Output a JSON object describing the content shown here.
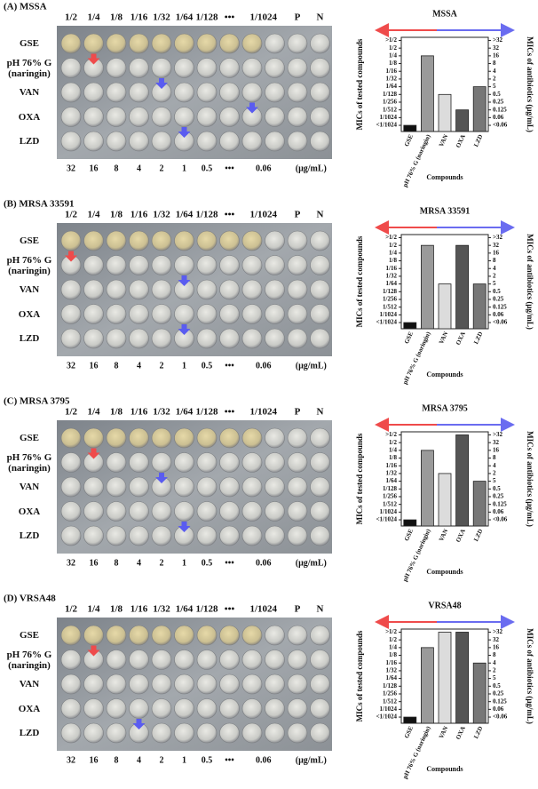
{
  "plates": [
    {
      "label": "(A) MSSA",
      "column_headers": [
        "1/2",
        "1/4",
        "1/8",
        "1/16",
        "1/32",
        "1/64",
        "1/128",
        "•••",
        "1/1024",
        "P",
        "N"
      ],
      "row_labels": [
        "GSE",
        "pH 76% G (naringin)",
        "VAN",
        "OXA",
        "LZD"
      ],
      "bottom_labels": [
        "32",
        "16",
        "8",
        "4",
        "2",
        "1",
        "0.5",
        "•••",
        "0.06",
        "(μg/mL)"
      ]
    },
    {
      "label": "(B) MRSA 33591",
      "column_headers": [
        "1/2",
        "1/4",
        "1/8",
        "1/16",
        "1/32",
        "1/64",
        "1/128",
        "•••",
        "1/1024",
        "P",
        "N"
      ],
      "row_labels": [
        "GSE",
        "pH 76% G (naringin)",
        "VAN",
        "OXA",
        "LZD"
      ],
      "bottom_labels": [
        "32",
        "16",
        "8",
        "4",
        "2",
        "1",
        "0.5",
        "•••",
        "0.06",
        "(μg/mL)"
      ]
    },
    {
      "label": "(C) MRSA 3795",
      "column_headers": [
        "1/2",
        "1/4",
        "1/8",
        "1/16",
        "1/32",
        "1/64",
        "1/128",
        "•••",
        "1/1024",
        "P",
        "N"
      ],
      "row_labels": [
        "GSE",
        "pH 76% G (naringin)",
        "VAN",
        "OXA",
        "LZD"
      ],
      "bottom_labels": [
        "32",
        "16",
        "8",
        "4",
        "2",
        "1",
        "0.5",
        "•••",
        "0.06",
        "(μg/mL)"
      ]
    },
    {
      "label": "(D) VRSA48",
      "column_headers": [
        "1/2",
        "1/4",
        "1/8",
        "1/16",
        "1/32",
        "1/64",
        "1/128",
        "•••",
        "1/1024",
        "P",
        "N"
      ],
      "row_labels": [
        "GSE",
        "pH 76% G (naringin)",
        "VAN",
        "OXA",
        "LZD"
      ],
      "bottom_labels": [
        "32",
        "16",
        "8",
        "4",
        "2",
        "1",
        "0.5",
        "•••",
        "0.06",
        "(μg/mL)"
      ]
    }
  ],
  "chart_data": [
    {
      "type": "bar",
      "title": "MSSA",
      "xlabel": "Compounds",
      "ylabel": "MICs of tested compounds",
      "y2label": "MICs of antibiotics (μg/mL)",
      "categories": [
        "GSE",
        "pH 76% G (naringin)",
        "VAN",
        "OXA",
        "LZD"
      ],
      "values": [
        0,
        9,
        4,
        2,
        5
      ],
      "colors": [
        "#111111",
        "#9a9a9a",
        "#dcdcdc",
        "#555555",
        "#777777"
      ],
      "ylim": [
        -0.8,
        11.4
      ],
      "yticks": [
        {
          "value": 0,
          "label": "<1/1024"
        },
        {
          "value": 1,
          "label": "1/1024"
        },
        {
          "value": 2,
          "label": "1/512"
        },
        {
          "value": 3,
          "label": "1/256"
        },
        {
          "value": 4,
          "label": "1/128"
        },
        {
          "value": 5,
          "label": "1/64"
        },
        {
          "value": 6,
          "label": "1/32"
        },
        {
          "value": 7,
          "label": "1/16"
        },
        {
          "value": 8,
          "label": "1/8"
        },
        {
          "value": 9,
          "label": "1/4"
        },
        {
          "value": 10,
          "label": "1/2"
        },
        {
          "value": 11,
          "label": ">1/2"
        }
      ],
      "y2ticks": [
        {
          "value": 0,
          "label": "<0.06"
        },
        {
          "value": 1,
          "label": "0.06"
        },
        {
          "value": 2,
          "label": "0.125"
        },
        {
          "value": 3,
          "label": "0.25"
        },
        {
          "value": 4,
          "label": "0.5"
        },
        5,
        {
          "value": 6,
          "label": "2"
        },
        {
          "value": 7,
          "label": "4"
        },
        {
          "value": 8,
          "label": "8"
        },
        {
          "value": 9,
          "label": "16"
        },
        {
          "value": 10,
          "label": "32"
        },
        {
          "value": 11,
          "label": ">32"
        }
      ]
    },
    {
      "type": "bar",
      "title": "MRSA 33591",
      "xlabel": "Compounds",
      "ylabel": "MICs of tested compounds",
      "y2label": "MICs of antibiotics (μg/mL)",
      "categories": [
        "GSE",
        "pH 76% G (naringin)",
        "VAN",
        "OXA",
        "LZD"
      ],
      "values": [
        0,
        10,
        5,
        10,
        5
      ],
      "colors": [
        "#111111",
        "#9a9a9a",
        "#dcdcdc",
        "#555555",
        "#777777"
      ],
      "ylim": [
        -0.8,
        11.4
      ],
      "yticks": [
        {
          "value": 0,
          "label": "<1/1024"
        },
        {
          "value": 1,
          "label": "1/1024"
        },
        {
          "value": 2,
          "label": "1/512"
        },
        {
          "value": 3,
          "label": "1/256"
        },
        {
          "value": 4,
          "label": "1/128"
        },
        {
          "value": 5,
          "label": "1/64"
        },
        {
          "value": 6,
          "label": "1/32"
        },
        {
          "value": 7,
          "label": "1/16"
        },
        {
          "value": 8,
          "label": "1/8"
        },
        {
          "value": 9,
          "label": "1/4"
        },
        {
          "value": 10,
          "label": "1/2"
        },
        {
          "value": 11,
          "label": ">1/2"
        }
      ],
      "y2ticks": [
        {
          "value": 0,
          "label": "<0.06"
        },
        {
          "value": 1,
          "label": "0.06"
        },
        {
          "value": 2,
          "label": "0.125"
        },
        {
          "value": 3,
          "label": "0.25"
        },
        {
          "value": 4,
          "label": "0.5"
        },
        5,
        {
          "value": 6,
          "label": "2"
        },
        {
          "value": 7,
          "label": "4"
        },
        {
          "value": 8,
          "label": "8"
        },
        {
          "value": 9,
          "label": "16"
        },
        {
          "value": 10,
          "label": "32"
        },
        {
          "value": 11,
          "label": ">32"
        }
      ]
    },
    {
      "type": "bar",
      "title": "MRSA 3795",
      "xlabel": "Compounds",
      "ylabel": "MICs of tested compounds",
      "y2label": "MICs of antibiotics (μg/mL)",
      "categories": [
        "GSE",
        "pH 76% G (naringin)",
        "VAN",
        "OXA",
        "LZD"
      ],
      "values": [
        0,
        9,
        6,
        11,
        5
      ],
      "colors": [
        "#111111",
        "#9a9a9a",
        "#dcdcdc",
        "#555555",
        "#777777"
      ],
      "ylim": [
        -0.8,
        11.4
      ],
      "yticks": [
        {
          "value": 0,
          "label": "<1/1024"
        },
        {
          "value": 1,
          "label": "1/1024"
        },
        {
          "value": 2,
          "label": "1/512"
        },
        {
          "value": 3,
          "label": "1/256"
        },
        {
          "value": 4,
          "label": "1/128"
        },
        {
          "value": 5,
          "label": "1/64"
        },
        {
          "value": 6,
          "label": "1/32"
        },
        {
          "value": 7,
          "label": "1/16"
        },
        {
          "value": 8,
          "label": "1/8"
        },
        {
          "value": 9,
          "label": "1/4"
        },
        {
          "value": 10,
          "label": "1/2"
        },
        {
          "value": 11,
          "label": ">1/2"
        }
      ],
      "y2ticks": [
        {
          "value": 0,
          "label": "<0.06"
        },
        {
          "value": 1,
          "label": "0.06"
        },
        {
          "value": 2,
          "label": "0.125"
        },
        {
          "value": 3,
          "label": "0.25"
        },
        {
          "value": 4,
          "label": "0.5"
        },
        5,
        {
          "value": 6,
          "label": "2"
        },
        {
          "value": 7,
          "label": "4"
        },
        {
          "value": 8,
          "label": "8"
        },
        {
          "value": 9,
          "label": "16"
        },
        {
          "value": 10,
          "label": "32"
        },
        {
          "value": 11,
          "label": ">32"
        }
      ]
    },
    {
      "type": "bar",
      "title": "VRSA48",
      "xlabel": "Compounds",
      "ylabel": "MICs of tested compounds",
      "y2label": "MICs of antibiotics (μg/mL)",
      "categories": [
        "GSE",
        "pH 76% G (naringin)",
        "VAN",
        "OXA",
        "LZD"
      ],
      "values": [
        0,
        9,
        11,
        11,
        7
      ],
      "colors": [
        "#111111",
        "#9a9a9a",
        "#dcdcdc",
        "#555555",
        "#777777"
      ],
      "ylim": [
        -0.8,
        11.4
      ],
      "yticks": [
        {
          "value": 0,
          "label": "<1/1024"
        },
        {
          "value": 1,
          "label": "1/1024"
        },
        {
          "value": 2,
          "label": "1/512"
        },
        {
          "value": 3,
          "label": "1/256"
        },
        {
          "value": 4,
          "label": "1/128"
        },
        {
          "value": 5,
          "label": "1/64"
        },
        {
          "value": 6,
          "label": "1/32"
        },
        {
          "value": 7,
          "label": "1/16"
        },
        {
          "value": 8,
          "label": "1/8"
        },
        {
          "value": 9,
          "label": "1/4"
        },
        {
          "value": 10,
          "label": "1/2"
        },
        {
          "value": 11,
          "label": ">1/2"
        }
      ],
      "y2ticks": [
        {
          "value": 0,
          "label": "<0.06"
        },
        {
          "value": 1,
          "label": "0.06"
        },
        {
          "value": 2,
          "label": "0.125"
        },
        {
          "value": 3,
          "label": "0.25"
        },
        {
          "value": 4,
          "label": "0.5"
        },
        5,
        {
          "value": 6,
          "label": "2"
        },
        {
          "value": 7,
          "label": "4"
        },
        {
          "value": 8,
          "label": "8"
        },
        {
          "value": 9,
          "label": "16"
        },
        {
          "value": 10,
          "label": "32"
        },
        {
          "value": 11,
          "label": ">32"
        }
      ]
    }
  ]
}
